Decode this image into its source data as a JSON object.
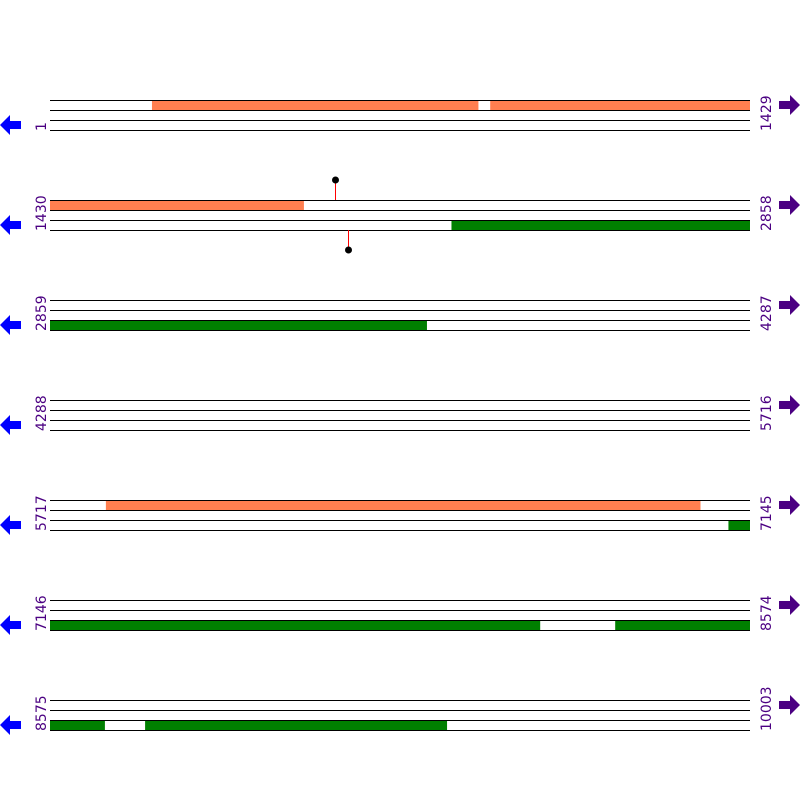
{
  "colors": {
    "forward_feature": "#ff7f50",
    "reverse_feature": "#008000",
    "strand_line": "#000000",
    "marker_stem": "#ff0000",
    "left_arrow": "#0000ff",
    "right_arrow": "#4b0082",
    "label": "#4b0082"
  },
  "rows": [
    {
      "start": "1",
      "end": "1429",
      "s": 1,
      "e": 1429,
      "features": [
        {
          "strand": "top",
          "from": 209,
          "to": 875
        },
        {
          "strand": "top",
          "from": 899,
          "to": 1429
        }
      ],
      "markers": []
    },
    {
      "start": "1430",
      "end": "2858",
      "s": 1430,
      "e": 2858,
      "features": [
        {
          "strand": "top",
          "from": 1430,
          "to": 1948
        },
        {
          "strand": "bottom",
          "from": 2249,
          "to": 2858
        }
      ],
      "markers": [
        {
          "strand": "top",
          "pos": 2012
        },
        {
          "strand": "bottom",
          "pos": 2038
        }
      ]
    },
    {
      "start": "2859",
      "end": "4287",
      "s": 2859,
      "e": 4287,
      "features": [
        {
          "strand": "bottom",
          "from": 2859,
          "to": 3628
        }
      ],
      "markers": []
    },
    {
      "start": "4288",
      "end": "5716",
      "s": 4288,
      "e": 5716,
      "features": [],
      "markers": []
    },
    {
      "start": "5717",
      "end": "7145",
      "s": 5717,
      "e": 7145,
      "features": [
        {
          "strand": "top",
          "from": 5831,
          "to": 7044
        },
        {
          "strand": "bottom",
          "from": 7101,
          "to": 7145
        }
      ],
      "markers": []
    },
    {
      "start": "7146",
      "end": "8574",
      "s": 7146,
      "e": 8574,
      "features": [
        {
          "strand": "bottom",
          "from": 7146,
          "to": 8146
        },
        {
          "strand": "bottom",
          "from": 8299,
          "to": 8574
        }
      ],
      "markers": []
    },
    {
      "start": "8575",
      "end": "10003",
      "s": 8575,
      "e": 10003,
      "features": [
        {
          "strand": "bottom",
          "from": 8575,
          "to": 8687
        },
        {
          "strand": "bottom",
          "from": 8769,
          "to": 9385
        }
      ],
      "markers": []
    }
  ]
}
